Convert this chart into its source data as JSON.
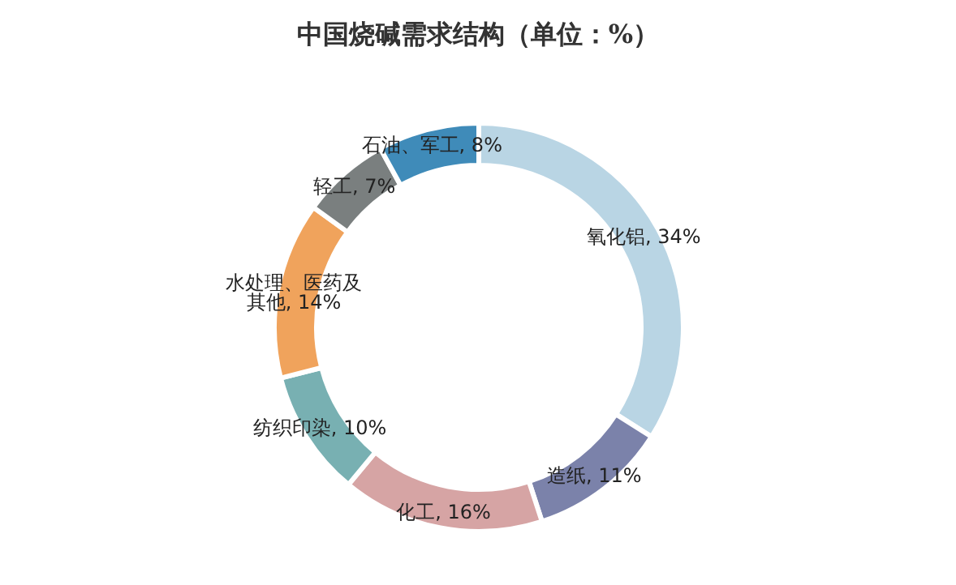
{
  "chart_data": {
    "type": "donut",
    "title": "中国烧碱需求结构（单位：%）",
    "categories": [
      "氧化铝",
      "造纸",
      "化工",
      "纺织印染",
      "水处理、医药及其他",
      "轻工",
      "石油、军工"
    ],
    "value_labels": [
      ", 34%",
      ", 11%",
      ", 16%",
      ", 10%",
      ", 14%",
      ", 7%",
      ", 8%"
    ],
    "values": [
      34,
      11,
      16,
      10,
      14,
      7,
      8
    ],
    "colors": [
      "#b9d5e4",
      "#7b82aa",
      "#d6a4a4",
      "#78b0b2",
      "#f0a35c",
      "#7a7f7f",
      "#3f8bb9"
    ],
    "legend": false
  }
}
